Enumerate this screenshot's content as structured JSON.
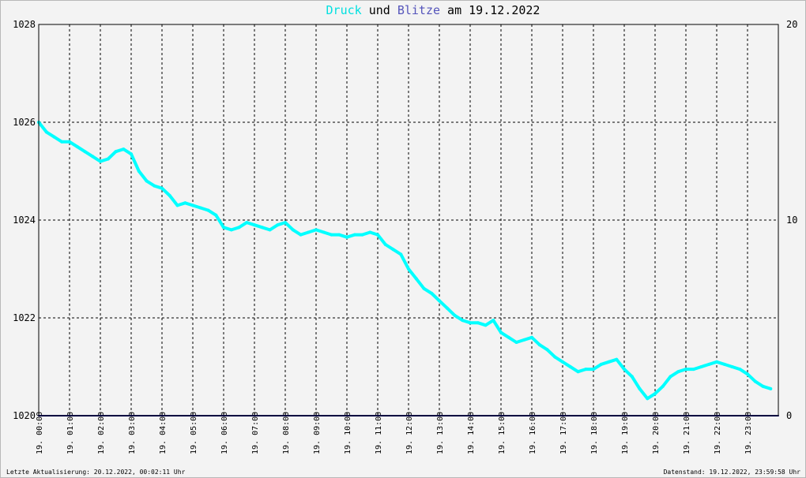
{
  "title": {
    "part1": "Druck",
    "part2": " und ",
    "part3": "Blitze",
    "part4": " am 19.12.2022"
  },
  "footer": {
    "left": "Letzte Aktualisierung: 20.12.2022, 00:02:11 Uhr",
    "right": "Datenstand: 19.12.2022, 23:59:58 Uhr"
  },
  "colors": {
    "pressure": "#00ffff",
    "lightning": "#00007f",
    "title_druck": "#00e0e0",
    "title_blitze": "#5555bb"
  },
  "chart_data": {
    "type": "line",
    "grid": true,
    "x_unit": "hour",
    "x_ticks": [
      "19. 00:00",
      "19. 01:00",
      "19. 02:00",
      "19. 03:00",
      "19. 04:00",
      "19. 05:00",
      "19. 06:00",
      "19. 07:00",
      "19. 08:00",
      "19. 09:00",
      "19. 10:00",
      "19. 11:00",
      "19. 12:00",
      "19. 13:00",
      "19. 14:00",
      "19. 15:00",
      "19. 16:00",
      "19. 17:00",
      "19. 18:00",
      "19. 19:00",
      "19. 20:00",
      "19. 21:00",
      "19. 22:00",
      "19. 23:00"
    ],
    "xlim": [
      0,
      24
    ],
    "y_left": {
      "ylim": [
        1020,
        1028
      ],
      "ticks": [
        "1020",
        "1022",
        "1024",
        "1026",
        "1028"
      ]
    },
    "y_right": {
      "ylim": [
        0,
        20
      ],
      "ticks": [
        "0",
        "10",
        "20"
      ]
    },
    "series": [
      {
        "name": "Druck",
        "axis": "left",
        "x": [
          0,
          0.25,
          0.5,
          0.75,
          1,
          1.25,
          1.5,
          1.75,
          2,
          2.25,
          2.5,
          2.75,
          3,
          3.25,
          3.5,
          3.75,
          4,
          4.25,
          4.5,
          4.75,
          5,
          5.25,
          5.5,
          5.75,
          6,
          6.25,
          6.5,
          6.75,
          7,
          7.25,
          7.5,
          7.75,
          8,
          8.25,
          8.5,
          8.75,
          9,
          9.25,
          9.5,
          9.75,
          10,
          10.25,
          10.5,
          10.75,
          11,
          11.25,
          11.5,
          11.75,
          12,
          12.25,
          12.5,
          12.75,
          13,
          13.25,
          13.5,
          13.75,
          14,
          14.25,
          14.5,
          14.75,
          15,
          15.25,
          15.5,
          15.75,
          16,
          16.25,
          16.5,
          16.75,
          17,
          17.25,
          17.5,
          17.75,
          18,
          18.25,
          18.5,
          18.75,
          19,
          19.25,
          19.5,
          19.75,
          20,
          20.25,
          20.5,
          20.75,
          21,
          21.25,
          21.5,
          21.75,
          22,
          22.25,
          22.5,
          22.75,
          23,
          23.25,
          23.5,
          23.75
        ],
        "y": [
          1026.0,
          1025.8,
          1025.7,
          1025.6,
          1025.6,
          1025.5,
          1025.4,
          1025.3,
          1025.2,
          1025.25,
          1025.4,
          1025.45,
          1025.35,
          1025.0,
          1024.8,
          1024.7,
          1024.65,
          1024.5,
          1024.3,
          1024.35,
          1024.3,
          1024.25,
          1024.2,
          1024.1,
          1023.85,
          1023.8,
          1023.85,
          1023.95,
          1023.9,
          1023.85,
          1023.8,
          1023.9,
          1023.95,
          1023.8,
          1023.7,
          1023.75,
          1023.8,
          1023.75,
          1023.7,
          1023.7,
          1023.65,
          1023.7,
          1023.7,
          1023.75,
          1023.7,
          1023.5,
          1023.4,
          1023.3,
          1023.0,
          1022.8,
          1022.6,
          1022.5,
          1022.35,
          1022.2,
          1022.05,
          1021.95,
          1021.9,
          1021.9,
          1021.85,
          1021.95,
          1021.7,
          1021.6,
          1021.5,
          1021.55,
          1021.6,
          1021.45,
          1021.35,
          1021.2,
          1021.1,
          1021.0,
          1020.9,
          1020.95,
          1020.95,
          1021.05,
          1021.1,
          1021.15,
          1020.95,
          1020.8,
          1020.55,
          1020.35,
          1020.45,
          1020.6,
          1020.8,
          1020.9,
          1020.95,
          1020.95,
          1021.0,
          1021.05,
          1021.1,
          1021.05,
          1021.0,
          1020.95,
          1020.85,
          1020.7,
          1020.6,
          1020.55
        ]
      },
      {
        "name": "Blitze",
        "axis": "right",
        "x": [
          0,
          24
        ],
        "y": [
          0,
          0
        ]
      }
    ]
  }
}
